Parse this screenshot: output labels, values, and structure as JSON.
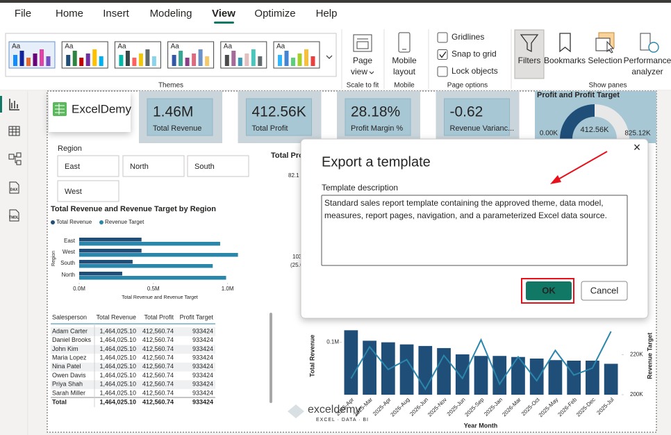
{
  "ribbon": {
    "tabs": [
      "File",
      "Home",
      "Insert",
      "Modeling",
      "View",
      "Optimize",
      "Help"
    ],
    "themes": {
      "thumbnails": [
        "Aa",
        "Aa",
        "Aa",
        "Aa",
        "Aa",
        "Aa"
      ],
      "label": "Themes"
    },
    "scale_to_fit": {
      "page_view": [
        "Page",
        "view"
      ],
      "label": "Scale to fit"
    },
    "mobile": {
      "mobile_layout": [
        "Mobile",
        "layout"
      ],
      "label": "Mobile"
    },
    "page_options": {
      "checkboxes": [
        {
          "label": "Gridlines",
          "checked": false
        },
        {
          "label": "Snap to grid",
          "checked": true
        },
        {
          "label": "Lock objects",
          "checked": false
        }
      ],
      "label": "Page options"
    },
    "show_panes": {
      "buttons": [
        [
          "Filters"
        ],
        [
          "Bookmarks"
        ],
        [
          "Selection"
        ],
        [
          "Performance",
          "analyzer"
        ]
      ],
      "label": "Show panes"
    }
  },
  "sidebar": {
    "labels": [
      "DAX",
      "TMDL"
    ]
  },
  "report": {
    "logo": "ExcelDemy",
    "cards": [
      {
        "value": "1.46M",
        "label": "Total Revenue"
      },
      {
        "value": "412.56K",
        "label": "Total Profit"
      },
      {
        "value": "28.18%",
        "label": "Profit Margin %"
      },
      {
        "value": "-0.62",
        "label": "Revenue Varianc..."
      }
    ],
    "gauge": {
      "type": "gauge",
      "title": "Profit and Profit Target",
      "min": 0,
      "min_label": "0.00K",
      "value": 412.56,
      "value_label": "412.56K",
      "max": 825.12,
      "max_label": "825.12K",
      "color": "#1f4e79"
    },
    "slicer": {
      "title": "Region",
      "items": [
        "East",
        "North",
        "South",
        "West"
      ]
    },
    "bar_chart": {
      "type": "hbar",
      "title": "Total Revenue and Revenue Target by Region",
      "categories": [
        "East",
        "West",
        "South",
        "North"
      ],
      "series": [
        {
          "name": "Total Revenue",
          "color": "#1f4e79",
          "values": [
            0.42,
            0.42,
            0.36,
            0.29
          ]
        },
        {
          "name": "Revenue Target",
          "color": "#2a86ab",
          "values": [
            0.95,
            1.07,
            0.9,
            0.99
          ]
        }
      ],
      "xlim": [
        0,
        1.1
      ],
      "xticks": [
        {
          "value": 0,
          "label": "0.0M"
        },
        {
          "value": 0.5,
          "label": "0.5M"
        },
        {
          "value": 1,
          "label": "1.0M"
        }
      ],
      "x_title": "Total Revenue and Revenue Target",
      "y_title": "Region"
    },
    "table": {
      "columns": [
        "Salesperson",
        "Total Revenue",
        "Total Profit",
        "Profit Target"
      ],
      "rows": [
        [
          "Adam Carter",
          "1,464,025.10",
          "412,560.74",
          "933424"
        ],
        [
          "Daniel Brooks",
          "1,464,025.10",
          "412,560.74",
          "933424"
        ],
        [
          "John Kim",
          "1,464,025.10",
          "412,560.74",
          "933424"
        ],
        [
          "Maria Lopez",
          "1,464,025.10",
          "412,560.74",
          "933424"
        ],
        [
          "Nina Patel",
          "1,464,025.10",
          "412,560.74",
          "933424"
        ],
        [
          "Owen Davis",
          "1,464,025.10",
          "412,560.74",
          "933424"
        ],
        [
          "Priya Shah",
          "1,464,025.10",
          "412,560.74",
          "933424"
        ],
        [
          "Sarah Miller",
          "1,464,025.10",
          "412,560.74",
          "933424"
        ]
      ],
      "total": [
        "Total",
        "1,464,025.10",
        "412,560.74",
        "933424"
      ]
    },
    "combo_chart": {
      "type": "bar_line",
      "categories": [
        "2026-Apr",
        "2025-Mar",
        "2025-Apr",
        "2026-Aug",
        "2026-Jun",
        "2025-Nov",
        "2025-Jun",
        "2025-Sep",
        "2025-Jan",
        "2026-Mar",
        "2025-Oct",
        "2025-May",
        "2026-Feb",
        "2025-Dec",
        "2025-Jul"
      ],
      "series": [
        {
          "name": "Total Revenue",
          "color": "#1f4e79",
          "values": [
            0.123,
            0.103,
            0.1,
            0.096,
            0.093,
            0.089,
            0.077,
            0.074,
            0.074,
            0.072,
            0.069,
            0.066,
            0.065,
            0.065,
            0.059
          ]
        },
        {
          "name": "Revenue Target",
          "color": "#2a86ab",
          "axis": "y2",
          "values": [
            208.1,
            223.9,
            212.6,
            217.5,
            202.8,
            219.6,
            208.1,
            227.4,
            205.3,
            218.9,
            207.0,
            222.1,
            209.8,
            213.3,
            231.6
          ]
        }
      ],
      "ylim": [
        0,
        0.13
      ],
      "yticks": [
        {
          "value": 0.1,
          "label": "0.1M"
        }
      ],
      "y2lim": [
        200,
        234
      ],
      "y2ticks": [
        {
          "value": 200,
          "label": "200K"
        },
        {
          "value": 220,
          "label": "220K"
        }
      ],
      "y_title": "Total Revenue",
      "y2_title": "Revenue Target",
      "x_title": "Year Month"
    },
    "obscured_chart": {
      "title": "Total Pro",
      "labels": [
        "82.1",
        "103",
        "(25.0"
      ]
    },
    "watermark": {
      "name": "exceldemy",
      "tagline": "EXCEL · DATA · BI"
    }
  },
  "dialog": {
    "title": "Export a template",
    "close": "×",
    "description_label": "Template description",
    "description": "Standard sales report template containing the approved theme, data model, measures, report pages, navigation, and a parameterized Excel data source.",
    "buttons": [
      "OK",
      "Cancel"
    ]
  }
}
